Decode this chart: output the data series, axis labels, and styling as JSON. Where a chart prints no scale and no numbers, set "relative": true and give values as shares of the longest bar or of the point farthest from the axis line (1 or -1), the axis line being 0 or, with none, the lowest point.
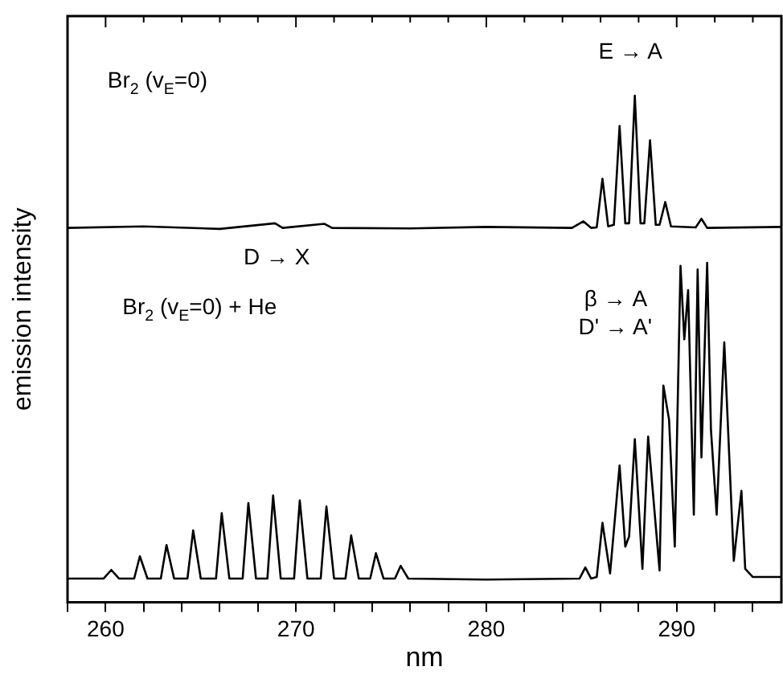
{
  "chart_data": {
    "type": "line",
    "relative": true,
    "xlabel": "nm",
    "ylabel": "emission intensity",
    "xlim": [
      258,
      295.5
    ],
    "xticks": [
      {
        "value": 258,
        "label": null
      },
      {
        "value": 260,
        "label": "260"
      },
      {
        "value": 262,
        "label": null
      },
      {
        "value": 264,
        "label": null
      },
      {
        "value": 266,
        "label": null
      },
      {
        "value": 268,
        "label": null
      },
      {
        "value": 270,
        "label": "270"
      },
      {
        "value": 272,
        "label": null
      },
      {
        "value": 274,
        "label": null
      },
      {
        "value": 276,
        "label": null
      },
      {
        "value": 278,
        "label": null
      },
      {
        "value": 280,
        "label": "280"
      },
      {
        "value": 282,
        "label": null
      },
      {
        "value": 284,
        "label": null
      },
      {
        "value": 286,
        "label": null
      },
      {
        "value": 288,
        "label": null
      },
      {
        "value": 290,
        "label": "290"
      },
      {
        "value": 292,
        "label": null
      },
      {
        "value": 294,
        "label": null
      }
    ],
    "grid": false,
    "legend": false,
    "marker": "none",
    "line_style": "solid",
    "series": [
      {
        "color": "#000000",
        "x": [
          258,
          262,
          266,
          268.9,
          269.3,
          271.5,
          271.9,
          276,
          280,
          284.5,
          285.1,
          285.5,
          285.8,
          286.1,
          286.4,
          286.7,
          287.0,
          287.3,
          287.5,
          287.8,
          288.1,
          288.3,
          288.6,
          288.9,
          289.1,
          289.4,
          289.7,
          291.0,
          291.3,
          291.6,
          295.5
        ],
        "values": [
          0.739,
          0.742,
          0.737,
          0.748,
          0.739,
          0.747,
          0.739,
          0.738,
          0.741,
          0.739,
          0.752,
          0.739,
          0.74,
          0.836,
          0.742,
          0.745,
          0.94,
          0.748,
          0.748,
          1.0,
          0.748,
          0.748,
          0.912,
          0.745,
          0.745,
          0.79,
          0.742,
          0.74,
          0.757,
          0.739,
          0.741
        ]
      },
      {
        "color": "#000000",
        "x": [
          258,
          259.9,
          260.3,
          260.7,
          261.5,
          261.8,
          262.2,
          262.9,
          263.2,
          263.6,
          264.3,
          264.6,
          265.0,
          265.8,
          266.1,
          266.5,
          267.2,
          267.5,
          267.9,
          268.5,
          268.8,
          269.2,
          269.9,
          270.2,
          270.6,
          271.3,
          271.6,
          272.0,
          272.6,
          272.9,
          273.3,
          273.9,
          274.2,
          274.6,
          275.2,
          275.5,
          275.9,
          280,
          284.9,
          285.2,
          285.5,
          285.8,
          286.1,
          286.5,
          287.0,
          287.3,
          287.5,
          287.8,
          288.2,
          288.5,
          289.1,
          289.3,
          289.6,
          289.9,
          290.2,
          290.4,
          290.6,
          290.9,
          291.1,
          291.3,
          291.6,
          291.8,
          292.1,
          292.5,
          293.0,
          293.4,
          293.6,
          294.0,
          295.5
        ],
        "values": [
          0.047,
          0.047,
          0.064,
          0.047,
          0.047,
          0.091,
          0.047,
          0.047,
          0.113,
          0.047,
          0.047,
          0.142,
          0.047,
          0.047,
          0.176,
          0.047,
          0.047,
          0.196,
          0.047,
          0.047,
          0.211,
          0.047,
          0.047,
          0.201,
          0.047,
          0.047,
          0.189,
          0.047,
          0.047,
          0.132,
          0.047,
          0.047,
          0.097,
          0.047,
          0.047,
          0.072,
          0.047,
          0.045,
          0.047,
          0.069,
          0.047,
          0.05,
          0.157,
          0.057,
          0.27,
          0.11,
          0.13,
          0.322,
          0.066,
          0.327,
          0.063,
          0.428,
          0.36,
          0.11,
          0.664,
          0.519,
          0.616,
          0.173,
          0.657,
          0.286,
          0.67,
          0.34,
          0.173,
          0.513,
          0.082,
          0.22,
          0.066,
          0.05,
          0.05
        ]
      }
    ],
    "annotations": [
      "Br$_{2}$ (v$_{E}$=0)",
      {
        "text": "E → A",
        "x": 287.6,
        "y": 1.0
      },
      "Br$_{2}$ (v$_{E}$=0) + He",
      "D → X",
      "β → A",
      "D' → A'"
    ]
  }
}
